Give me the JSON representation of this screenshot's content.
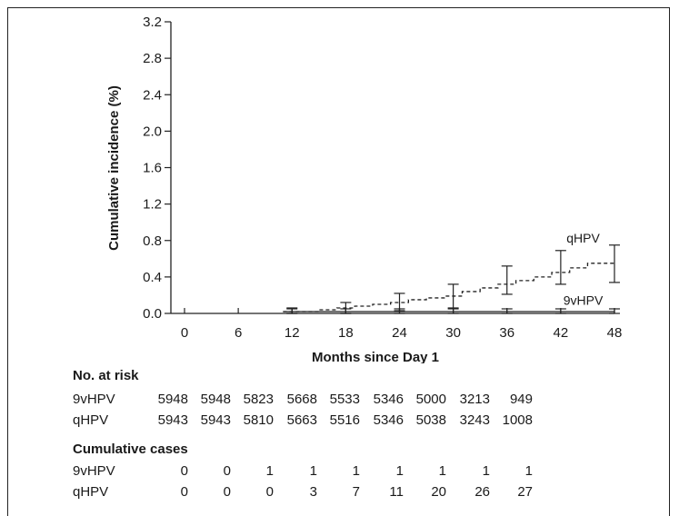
{
  "chart_data": {
    "type": "line",
    "ylabel": "Cumulative incidence (%)",
    "xlabel": "Months since Day 1",
    "xlim": [
      0,
      48
    ],
    "ylim": [
      0,
      3.2
    ],
    "x_ticks": [
      "0",
      "6",
      "12",
      "18",
      "24",
      "30",
      "36",
      "42",
      "48"
    ],
    "y_ticks": [
      "0.0",
      "0.4",
      "0.8",
      "1.2",
      "1.6",
      "2.0",
      "2.4",
      "2.8",
      "3.2"
    ],
    "x_tick_values": [
      0,
      6,
      12,
      18,
      24,
      30,
      36,
      42,
      48
    ],
    "y_tick_values": [
      0,
      0.4,
      0.8,
      1.2,
      1.6,
      2.0,
      2.4,
      2.8,
      3.2
    ],
    "grid": false,
    "series": [
      {
        "name": "qHPV",
        "style": "dashed",
        "step_x": [
          11,
          15,
          17,
          19,
          21,
          23,
          25,
          27,
          29,
          31,
          33,
          35,
          37,
          39,
          41,
          43,
          45,
          48
        ],
        "step_y": [
          0.02,
          0.04,
          0.06,
          0.08,
          0.1,
          0.12,
          0.15,
          0.17,
          0.19,
          0.24,
          0.28,
          0.32,
          0.36,
          0.4,
          0.45,
          0.5,
          0.55,
          0.57
        ],
        "errorbars": [
          {
            "x": 12,
            "y": 0.02,
            "low": 0.0,
            "high": 0.06
          },
          {
            "x": 18,
            "y": 0.05,
            "low": 0.0,
            "high": 0.12
          },
          {
            "x": 24,
            "y": 0.12,
            "low": 0.03,
            "high": 0.22
          },
          {
            "x": 30,
            "y": 0.18,
            "low": 0.06,
            "high": 0.32
          },
          {
            "x": 36,
            "y": 0.36,
            "low": 0.21,
            "high": 0.52
          },
          {
            "x": 42,
            "y": 0.5,
            "low": 0.32,
            "high": 0.69
          },
          {
            "x": 48,
            "y": 0.55,
            "low": 0.34,
            "high": 0.75
          }
        ]
      },
      {
        "name": "9vHPV",
        "style": "solid",
        "step_x": [
          11,
          48
        ],
        "step_y": [
          0.02,
          0.02
        ],
        "errorbars": [
          {
            "x": 12,
            "y": 0.02,
            "low": 0.0,
            "high": 0.05
          },
          {
            "x": 18,
            "y": 0.02,
            "low": 0.0,
            "high": 0.05
          },
          {
            "x": 24,
            "y": 0.02,
            "low": 0.0,
            "high": 0.05
          },
          {
            "x": 30,
            "y": 0.02,
            "low": 0.0,
            "high": 0.05
          },
          {
            "x": 36,
            "y": 0.02,
            "low": 0.0,
            "high": 0.05
          },
          {
            "x": 42,
            "y": 0.02,
            "low": 0.0,
            "high": 0.05
          },
          {
            "x": 48,
            "y": 0.02,
            "low": 0.0,
            "high": 0.05
          }
        ]
      }
    ],
    "labels": [
      {
        "text": "qHPV",
        "series": "qHPV"
      },
      {
        "text": "9vHPV",
        "series": "9vHPV"
      }
    ]
  },
  "risk_table": {
    "heading": "No. at risk",
    "rows": [
      {
        "label": "9vHPV",
        "values": [
          "5948",
          "5948",
          "5823",
          "5668",
          "5533",
          "5346",
          "5000",
          "3213",
          "949"
        ]
      },
      {
        "label": "qHPV",
        "values": [
          "5943",
          "5943",
          "5810",
          "5663",
          "5516",
          "5346",
          "5038",
          "3243",
          "1008"
        ]
      }
    ]
  },
  "cases_table": {
    "heading": "Cumulative cases",
    "rows": [
      {
        "label": "9vHPV",
        "values": [
          "0",
          "0",
          "1",
          "1",
          "1",
          "1",
          "1",
          "1",
          "1"
        ]
      },
      {
        "label": "qHPV",
        "values": [
          "0",
          "0",
          "0",
          "3",
          "7",
          "11",
          "20",
          "26",
          "27"
        ]
      }
    ]
  }
}
